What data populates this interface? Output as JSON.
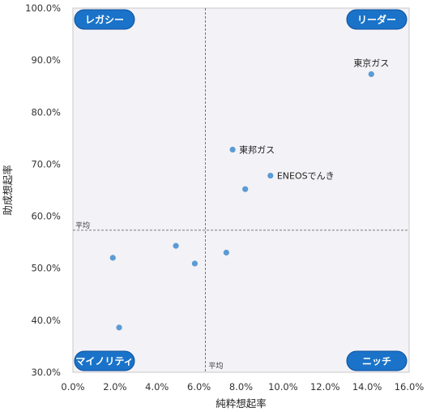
{
  "chart_data": {
    "type": "scatter",
    "xlabel": "純粋想起率",
    "ylabel": "助成想起率",
    "xlim": [
      0,
      16
    ],
    "ylim": [
      30,
      100
    ],
    "x_ticks": [
      "0.0%",
      "2.0%",
      "4.0%",
      "6.0%",
      "8.0%",
      "10.0%",
      "12.0%",
      "14.0%",
      "16.0%"
    ],
    "y_ticks": [
      "30.0%",
      "40.0%",
      "50.0%",
      "60.0%",
      "70.0%",
      "80.0%",
      "90.0%",
      "100.0%"
    ],
    "average": {
      "x": 6.3,
      "y": 57.3,
      "x_label": "平均",
      "y_label": "平均"
    },
    "quadrants": {
      "top_left": "レガシー",
      "top_right": "リーダー",
      "bottom_left": "マイノリティ",
      "bottom_right": "ニッチ"
    },
    "grid": false,
    "point_color": "#5b9bd5",
    "quadrant_color": "#1a73c8",
    "points": [
      {
        "x": 14.2,
        "y": 87.3,
        "label": "東京ガス"
      },
      {
        "x": 7.6,
        "y": 72.8,
        "label": "東邦ガス"
      },
      {
        "x": 9.4,
        "y": 67.8,
        "label": "ENEOSでんき"
      },
      {
        "x": 8.2,
        "y": 65.2,
        "label": ""
      },
      {
        "x": 4.9,
        "y": 54.3,
        "label": ""
      },
      {
        "x": 1.9,
        "y": 52.0,
        "label": ""
      },
      {
        "x": 5.8,
        "y": 50.9,
        "label": ""
      },
      {
        "x": 7.3,
        "y": 53.0,
        "label": ""
      },
      {
        "x": 2.2,
        "y": 38.6,
        "label": ""
      }
    ]
  }
}
